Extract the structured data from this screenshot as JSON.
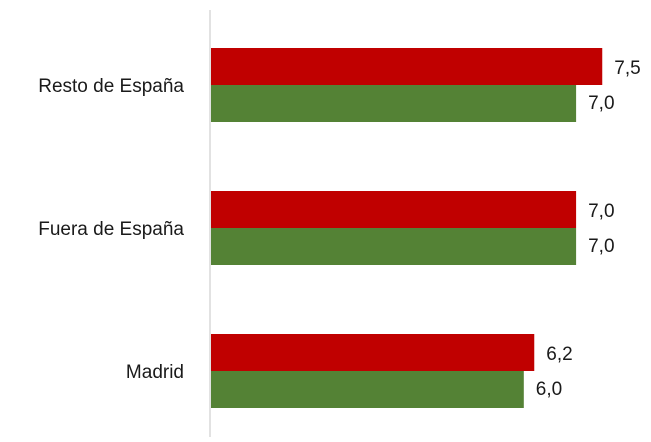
{
  "chart_data": {
    "type": "bar",
    "orientation": "horizontal",
    "categories": [
      "Resto de España",
      "Fuera de España",
      "Madrid"
    ],
    "series": [
      {
        "values": [
          7.5,
          7.0,
          6.2
        ],
        "labels": [
          "7,5",
          "7,0",
          "6,2"
        ],
        "color": "#c00000"
      },
      {
        "values": [
          7.0,
          7.0,
          6.0
        ],
        "labels": [
          "7,0",
          "7,0",
          "6,0"
        ],
        "color": "#548235"
      }
    ],
    "xlim": [
      0,
      10
    ],
    "grid": false,
    "legend": "none",
    "axis_color": "#d9d9d9"
  }
}
